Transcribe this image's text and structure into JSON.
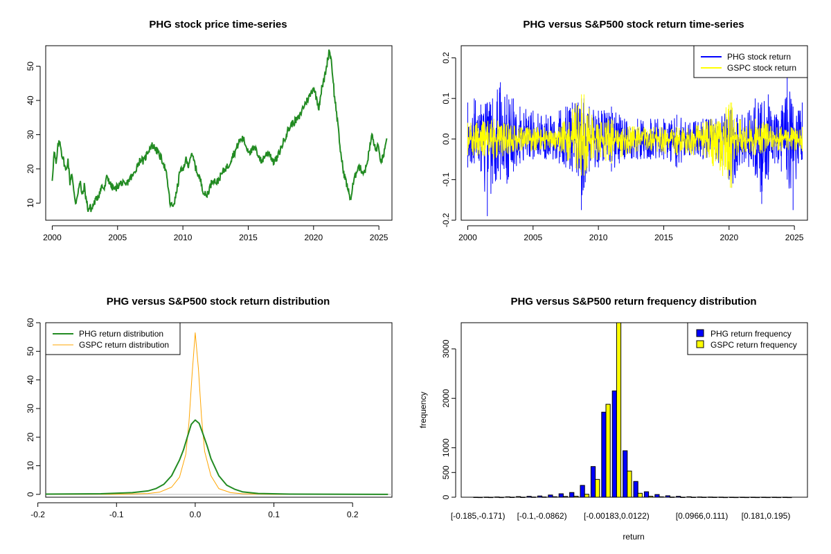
{
  "colors": {
    "price_line": "#228B22",
    "phg_return": "#0000FF",
    "gspc_return": "#FFFF00",
    "phg_density": "#228B22",
    "gspc_density": "#FFA500",
    "axis": "#000000",
    "zero_line": "#BEBEBE"
  },
  "chart_data": [
    {
      "id": "price",
      "type": "line",
      "title": "PHG stock price time-series",
      "xlabel": "",
      "ylabel": "",
      "xlim": [
        1999.5,
        2026.0
      ],
      "ylim": [
        5,
        56
      ],
      "x_ticks": [
        2000,
        2005,
        2010,
        2015,
        2020,
        2025
      ],
      "x_tick_labels": [
        "2000",
        "2005",
        "2010",
        "2015",
        "2020",
        "2025"
      ],
      "y_ticks": [
        10,
        20,
        30,
        40,
        50
      ],
      "y_tick_labels": [
        "10",
        "20",
        "30",
        "40",
        "50"
      ],
      "series": [
        {
          "name": "PHG price",
          "x": [
            2000.0,
            2000.15,
            2000.3,
            2000.45,
            2000.6,
            2000.75,
            2000.9,
            2001.05,
            2001.2,
            2001.35,
            2001.5,
            2001.65,
            2001.8,
            2002.0,
            2002.15,
            2002.3,
            2002.45,
            2002.6,
            2002.75,
            2002.9,
            2003.0,
            2003.2,
            2003.5,
            2003.8,
            2004.0,
            2004.2,
            2004.5,
            2004.8,
            2005.0,
            2005.3,
            2005.6,
            2005.9,
            2006.2,
            2006.5,
            2006.8,
            2007.0,
            2007.3,
            2007.6,
            2007.9,
            2008.2,
            2008.5,
            2008.7,
            2008.9,
            2009.0,
            2009.2,
            2009.4,
            2009.6,
            2009.8,
            2010.0,
            2010.2,
            2010.4,
            2010.6,
            2010.8,
            2011.0,
            2011.2,
            2011.4,
            2011.6,
            2011.8,
            2012.0,
            2012.3,
            2012.6,
            2012.9,
            2013.2,
            2013.5,
            2013.8,
            2014.0,
            2014.3,
            2014.6,
            2014.9,
            2015.2,
            2015.5,
            2015.8,
            2016.0,
            2016.3,
            2016.6,
            2016.9,
            2017.2,
            2017.5,
            2017.8,
            2018.0,
            2018.3,
            2018.6,
            2018.9,
            2019.2,
            2019.5,
            2019.8,
            2020.0,
            2020.2,
            2020.4,
            2020.6,
            2020.8,
            2021.0,
            2021.2,
            2021.35,
            2021.5,
            2021.6,
            2021.75,
            2021.9,
            2022.1,
            2022.3,
            2022.5,
            2022.7,
            2022.85,
            2023.0,
            2023.2,
            2023.4,
            2023.6,
            2023.8,
            2024.0,
            2024.15,
            2024.3,
            2024.45,
            2024.6,
            2024.75,
            2024.9,
            2025.05,
            2025.2,
            2025.35,
            2025.5,
            2025.6
          ],
          "values": [
            17,
            25,
            21,
            27,
            28,
            24,
            22,
            19,
            23,
            16,
            19,
            13,
            10,
            14,
            16,
            12,
            15,
            11,
            8,
            9,
            8,
            10,
            12,
            15,
            14,
            18,
            15,
            14,
            15,
            16,
            15,
            17,
            18,
            21,
            23,
            22,
            25,
            27,
            26,
            24,
            22,
            19,
            14,
            10,
            9,
            11,
            15,
            20,
            19,
            23,
            21,
            24,
            23,
            20,
            18,
            16,
            13,
            12,
            14,
            17,
            16,
            18,
            20,
            21,
            24,
            25,
            28,
            29,
            26,
            25,
            26,
            24,
            22,
            24,
            25,
            22,
            23,
            26,
            29,
            31,
            33,
            34,
            35,
            38,
            40,
            42,
            44,
            41,
            38,
            43,
            46,
            50,
            55,
            52,
            46,
            41,
            37,
            31,
            24,
            19,
            16,
            13,
            11,
            15,
            18,
            21,
            20,
            19,
            20,
            23,
            26,
            30,
            28,
            25,
            27,
            24,
            22,
            24,
            26,
            28
          ]
        }
      ]
    },
    {
      "id": "returns",
      "type": "line",
      "title": "PHG versus S&P500 stock return time-series",
      "xlabel": "",
      "ylabel": "",
      "xlim": [
        1999.5,
        2026.0
      ],
      "ylim": [
        -0.2,
        0.23
      ],
      "x_ticks": [
        2000,
        2005,
        2010,
        2015,
        2020,
        2025
      ],
      "x_tick_labels": [
        "2000",
        "2005",
        "2010",
        "2015",
        "2020",
        "2025"
      ],
      "y_ticks": [
        -0.2,
        -0.1,
        0.0,
        0.1,
        0.2
      ],
      "y_tick_labels": [
        "-0.2",
        "-0.1",
        "0.0",
        "0.1",
        "0.2"
      ],
      "legend_position": "top-right",
      "legend": [
        "PHG stock return",
        "GSPC stock return"
      ],
      "series": [
        {
          "name": "PHG stock return",
          "x": [
            2000,
            2000.5,
            2001,
            2001.5,
            2001.9,
            2002.5,
            2003,
            2003.5,
            2004,
            2005,
            2006,
            2007,
            2007.5,
            2008,
            2008.7,
            2008.9,
            2009.3,
            2010,
            2011,
            2011.6,
            2012,
            2013,
            2014,
            2015,
            2016,
            2017,
            2018,
            2019,
            2020,
            2020.2,
            2021,
            2022,
            2022.5,
            2023,
            2023.5,
            2024,
            2024.45,
            2024.9,
            2025.3,
            2025.6
          ],
          "high": [
            0.09,
            0.1,
            0.085,
            0.09,
            0.1,
            0.14,
            0.11,
            0.1,
            0.08,
            0.07,
            0.06,
            0.07,
            0.08,
            0.09,
            0.1,
            0.1,
            0.08,
            0.07,
            0.08,
            0.06,
            0.05,
            0.05,
            0.05,
            0.05,
            0.06,
            0.04,
            0.05,
            0.05,
            0.07,
            0.08,
            0.06,
            0.1,
            0.09,
            0.11,
            0.06,
            0.07,
            0.17,
            0.08,
            0.07,
            0.09
          ],
          "low": [
            -0.07,
            -0.06,
            -0.08,
            -0.19,
            -0.11,
            -0.1,
            -0.11,
            -0.08,
            -0.06,
            -0.05,
            -0.05,
            -0.06,
            -0.07,
            -0.08,
            -0.175,
            -0.12,
            -0.08,
            -0.07,
            -0.08,
            -0.06,
            -0.05,
            -0.05,
            -0.05,
            -0.05,
            -0.07,
            -0.04,
            -0.05,
            -0.05,
            -0.1,
            -0.12,
            -0.06,
            -0.09,
            -0.16,
            -0.1,
            -0.06,
            -0.08,
            -0.1,
            -0.175,
            -0.06,
            -0.05
          ]
        },
        {
          "name": "GSPC stock return",
          "x": [
            2000,
            2002,
            2004,
            2007,
            2008.7,
            2008.9,
            2009.5,
            2011,
            2013,
            2016,
            2018,
            2020.1,
            2020.2,
            2020.4,
            2022,
            2024,
            2025.6
          ],
          "high": [
            0.04,
            0.05,
            0.03,
            0.03,
            0.11,
            0.11,
            0.06,
            0.05,
            0.03,
            0.03,
            0.04,
            0.09,
            0.09,
            0.05,
            0.05,
            0.03,
            0.03
          ],
          "low": [
            -0.04,
            -0.05,
            -0.03,
            -0.03,
            -0.09,
            -0.09,
            -0.05,
            -0.06,
            -0.03,
            -0.04,
            -0.04,
            -0.12,
            -0.12,
            -0.05,
            -0.04,
            -0.03,
            -0.03
          ]
        }
      ]
    },
    {
      "id": "density",
      "type": "line",
      "title": "PHG versus S&P500 stock return distribution",
      "xlabel": "",
      "ylabel": "",
      "xlim": [
        -0.19,
        0.25
      ],
      "ylim": [
        -1,
        60
      ],
      "x_ticks": [
        -0.2,
        -0.1,
        0.0,
        0.1,
        0.2
      ],
      "x_tick_labels": [
        "-0.2",
        "-0.1",
        "0.0",
        "0.1",
        "0.2"
      ],
      "y_ticks": [
        0,
        10,
        20,
        30,
        40,
        50,
        60
      ],
      "y_tick_labels": [
        "0",
        "10",
        "20",
        "30",
        "40",
        "50",
        "60"
      ],
      "legend_position": "top-left",
      "legend": [
        "PHG return distribution",
        "GSPC return distribution"
      ],
      "series": [
        {
          "name": "PHG return distribution",
          "x": [
            -0.19,
            -0.12,
            -0.08,
            -0.06,
            -0.05,
            -0.04,
            -0.03,
            -0.02,
            -0.015,
            -0.01,
            -0.005,
            0.0,
            0.005,
            0.01,
            0.015,
            0.02,
            0.03,
            0.04,
            0.05,
            0.06,
            0.08,
            0.12,
            0.245
          ],
          "values": [
            0.1,
            0.2,
            0.6,
            1.2,
            2.0,
            3.5,
            6.5,
            12.0,
            15.5,
            20.0,
            24.5,
            26.0,
            24.8,
            21.0,
            17.0,
            12.5,
            6.5,
            3.2,
            1.8,
            0.9,
            0.3,
            0.1,
            0.0
          ]
        },
        {
          "name": "GSPC return distribution",
          "x": [
            -0.19,
            -0.1,
            -0.06,
            -0.045,
            -0.03,
            -0.02,
            -0.012,
            -0.008,
            -0.004,
            0.0,
            0.004,
            0.008,
            0.012,
            0.02,
            0.03,
            0.045,
            0.06,
            0.1,
            0.245
          ],
          "values": [
            0.0,
            0.05,
            0.3,
            0.8,
            2.5,
            6.0,
            14.0,
            25.0,
            42.0,
            56.5,
            44.0,
            27.0,
            15.0,
            6.5,
            2.0,
            0.6,
            0.2,
            0.0,
            0.0
          ]
        }
      ]
    },
    {
      "id": "histogram",
      "type": "bar",
      "title": "PHG versus S&P500 return frequency distribution",
      "xlabel": "return",
      "ylabel": "frequency",
      "ylim": [
        0,
        3530
      ],
      "y_ticks": [
        0,
        500,
        1000,
        2000,
        3000
      ],
      "y_tick_labels": [
        "0",
        "500",
        "1000",
        "2000",
        "3000"
      ],
      "category_labels": [
        "[-0.185,-0.171)",
        "[-0.1,-0.0862)",
        "[-0.00183,0.0122)",
        "[0.0966,0.111)",
        "[0.181,0.195)"
      ],
      "labeled_bins": [
        0,
        6,
        13,
        21,
        27
      ],
      "legend_position": "top-right",
      "legend": [
        "PHG return frequency",
        "GSPC return frequency"
      ],
      "series": [
        {
          "name": "PHG return frequency",
          "values": [
            2,
            3,
            5,
            8,
            12,
            18,
            25,
            45,
            70,
            95,
            240,
            620,
            1720,
            2150,
            940,
            320,
            110,
            55,
            30,
            18,
            10,
            6,
            4,
            3,
            2,
            2,
            1,
            1,
            1,
            1
          ]
        },
        {
          "name": "GSPC return frequency",
          "values": [
            0,
            0,
            0,
            1,
            2,
            4,
            6,
            10,
            15,
            20,
            60,
            360,
            1880,
            3600,
            530,
            80,
            20,
            8,
            4,
            2,
            1,
            1,
            1,
            0,
            0,
            0,
            0,
            0,
            0,
            0
          ]
        }
      ]
    }
  ]
}
